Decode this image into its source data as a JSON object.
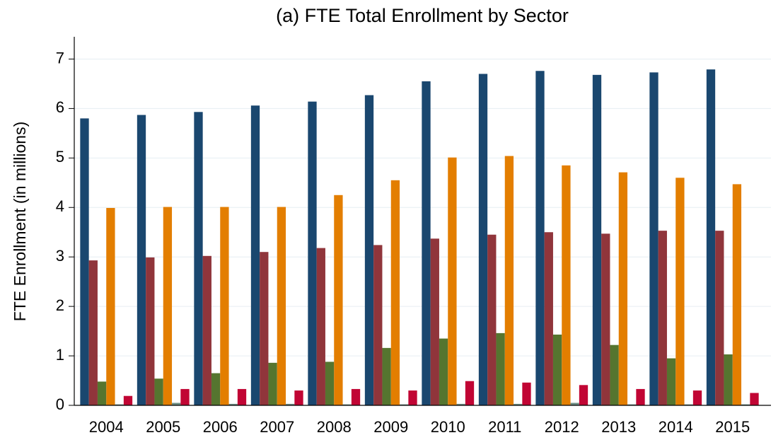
{
  "chart_data": {
    "type": "bar",
    "title": "(a) FTE Total Enrollment by Sector",
    "ylabel": "FTE Enrollment (in millions)",
    "categories": [
      "2004",
      "2005",
      "2006",
      "2007",
      "2008",
      "2009",
      "2010",
      "2011",
      "2012",
      "2013",
      "2014",
      "2015"
    ],
    "series": [
      {
        "color": "#1a476f",
        "values": [
          5.8,
          5.87,
          5.93,
          6.06,
          6.14,
          6.27,
          6.55,
          6.7,
          6.76,
          6.68,
          6.73,
          6.79
        ]
      },
      {
        "color": "#90353b",
        "values": [
          2.93,
          2.99,
          3.02,
          3.1,
          3.18,
          3.24,
          3.37,
          3.45,
          3.5,
          3.47,
          3.53,
          3.53
        ]
      },
      {
        "color": "#55752f",
        "values": [
          0.48,
          0.54,
          0.65,
          0.86,
          0.88,
          1.16,
          1.35,
          1.46,
          1.43,
          1.22,
          0.95,
          1.03
        ]
      },
      {
        "color": "#e37e00",
        "values": [
          3.99,
          4.01,
          4.01,
          4.01,
          4.25,
          4.55,
          5.01,
          5.04,
          4.85,
          4.71,
          4.6,
          4.47
        ]
      },
      {
        "color": "#6e8e84",
        "values": [
          0.02,
          0.05,
          0.03,
          0.03,
          0.02,
          0.02,
          0.03,
          0.03,
          0.05,
          0.02,
          0.02,
          0.02
        ]
      },
      {
        "color": "#c10534",
        "values": [
          0.19,
          0.33,
          0.33,
          0.3,
          0.33,
          0.3,
          0.49,
          0.46,
          0.41,
          0.33,
          0.3,
          0.25
        ]
      }
    ],
    "ylim": [
      0,
      7.45
    ],
    "yticks": [
      0,
      1,
      2,
      3,
      4,
      5,
      6,
      7
    ],
    "grid": true
  }
}
